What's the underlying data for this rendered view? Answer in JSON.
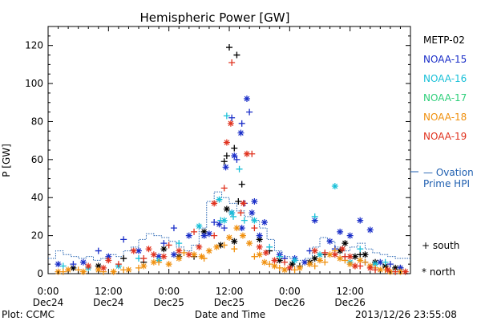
{
  "chart_data": {
    "type": "scatter",
    "title": "Hemispheric Power [GW]",
    "xlabel": "Date and Time",
    "ylabel": "P [GW]",
    "x_unit": "hours from 2013-12-24 00:00",
    "xlim": [
      0,
      72
    ],
    "ylim": [
      0,
      130
    ],
    "yticks": [
      0,
      20,
      40,
      60,
      80,
      100,
      120
    ],
    "xticks": [
      {
        "x": 0,
        "line1": "0:00",
        "line2": "Dec24"
      },
      {
        "x": 12,
        "line1": "12:00",
        "line2": "Dec24"
      },
      {
        "x": 24,
        "line1": "0:00",
        "line2": "Dec25"
      },
      {
        "x": 36,
        "line1": "12:00",
        "line2": "Dec25"
      },
      {
        "x": 48,
        "line1": "0:00",
        "line2": "Dec26"
      },
      {
        "x": 60,
        "line1": "12:00",
        "line2": "Dec26"
      }
    ],
    "legend": {
      "placement": "right",
      "satellites": [
        {
          "name": "METP-02",
          "color": "#000000"
        },
        {
          "name": "NOAA-15",
          "color": "#1a2ec8"
        },
        {
          "name": "NOAA-16",
          "color": "#19c0d8"
        },
        {
          "name": "NOAA-17",
          "color": "#2ecf7a"
        },
        {
          "name": "NOAA-18",
          "color": "#f0900e"
        },
        {
          "name": "NOAA-19",
          "color": "#e0321e"
        }
      ],
      "ovation_label_1": "— Ovation",
      "ovation_label_2": "Prime HPI",
      "ovation_color": "#1f5fb0",
      "south_label": "+ south",
      "north_label": "* north"
    },
    "footer_left": "Plot: CCMC",
    "footer_right": "2013/12/26 23:55:08",
    "ovation": {
      "x": [
        0,
        1.5,
        3,
        4.5,
        6,
        7.5,
        9,
        10.5,
        12,
        13.5,
        15,
        16.5,
        18,
        19.5,
        21,
        22.5,
        24,
        25.5,
        27,
        28.5,
        30,
        31.5,
        33,
        34.5,
        36,
        37.5,
        39,
        40.5,
        42,
        43.5,
        45,
        46.5,
        48,
        49.5,
        51,
        52.5,
        54,
        55.5,
        57,
        58.5,
        60,
        61.5,
        63,
        64.5,
        66,
        67.5,
        69,
        70.5,
        72
      ],
      "y": [
        8,
        12,
        10,
        9,
        8,
        9,
        7,
        8,
        10,
        9,
        12,
        14,
        18,
        21,
        20,
        19,
        17,
        14,
        12,
        15,
        24,
        38,
        43,
        40,
        37,
        33,
        30,
        28,
        24,
        18,
        12,
        9,
        8,
        7,
        8,
        14,
        19,
        17,
        14,
        12,
        14,
        16,
        13,
        11,
        10,
        9,
        8,
        8,
        8
      ]
    },
    "series": [
      {
        "name": "METP-02",
        "color": "#000000",
        "north": [
          [
            34.3,
            15
          ],
          [
            37,
            17
          ],
          [
            46,
            7
          ],
          [
            48.5,
            5
          ],
          [
            52,
            6
          ],
          [
            58,
            12
          ],
          [
            59,
            16
          ],
          [
            63,
            10
          ],
          [
            65,
            6
          ],
          [
            5,
            3
          ],
          [
            10,
            4
          ],
          [
            23,
            13
          ],
          [
            26,
            9
          ],
          [
            31,
            22
          ],
          [
            35.5,
            34
          ],
          [
            42,
            18
          ],
          [
            53,
            8
          ],
          [
            61,
            9
          ],
          [
            67,
            4
          ],
          [
            69,
            3
          ]
        ],
        "south": [
          [
            36,
            119
          ],
          [
            37.5,
            115
          ],
          [
            35.5,
            62
          ],
          [
            37,
            66
          ],
          [
            38.5,
            47
          ],
          [
            35,
            59
          ],
          [
            37.8,
            38
          ],
          [
            15,
            8
          ],
          [
            19,
            6
          ],
          [
            29,
            9
          ],
          [
            44,
            12
          ],
          [
            50,
            4
          ],
          [
            55,
            10
          ],
          [
            62,
            10
          ],
          [
            70,
            3
          ]
        ]
      },
      {
        "name": "NOAA-15",
        "color": "#1a2ec8",
        "north": [
          [
            39.5,
            92
          ],
          [
            38.3,
            74
          ],
          [
            37,
            62
          ],
          [
            35.3,
            56
          ],
          [
            34,
            26
          ],
          [
            36.5,
            32
          ],
          [
            38.5,
            24
          ],
          [
            41,
            38
          ],
          [
            40.5,
            32
          ],
          [
            42,
            20
          ],
          [
            43,
            27
          ],
          [
            53,
            28
          ],
          [
            60,
            20
          ],
          [
            62,
            28
          ],
          [
            64,
            23
          ],
          [
            32,
            21
          ],
          [
            31,
            20
          ],
          [
            25,
            10
          ],
          [
            18,
            12
          ],
          [
            12,
            9
          ],
          [
            7,
            6
          ],
          [
            2,
            5
          ],
          [
            46,
            10
          ],
          [
            49,
            8
          ],
          [
            51,
            6
          ],
          [
            56,
            17
          ],
          [
            58,
            22
          ],
          [
            66,
            6
          ],
          [
            70,
            3
          ],
          [
            28,
            20
          ],
          [
            22,
            9
          ]
        ],
        "south": [
          [
            40,
            85
          ],
          [
            38.5,
            79
          ],
          [
            36.5,
            82
          ],
          [
            37.5,
            60
          ],
          [
            39,
            37
          ],
          [
            33,
            27
          ],
          [
            35,
            24
          ],
          [
            25,
            24
          ],
          [
            23,
            16
          ],
          [
            15,
            18
          ],
          [
            10,
            12
          ],
          [
            5,
            5
          ],
          [
            47,
            8
          ],
          [
            52,
            12
          ],
          [
            57,
            13
          ],
          [
            59,
            9
          ],
          [
            63,
            6
          ],
          [
            68,
            5
          ]
        ]
      },
      {
        "name": "NOAA-16",
        "color": "#19c0d8",
        "north": [
          [
            57,
            46
          ],
          [
            36.5,
            32
          ],
          [
            34,
            39
          ],
          [
            30,
            25
          ],
          [
            41,
            28
          ],
          [
            35,
            28
          ],
          [
            49,
            7
          ],
          [
            54,
            10
          ],
          [
            60,
            6
          ],
          [
            65,
            5
          ],
          [
            22,
            7
          ],
          [
            14,
            4
          ],
          [
            8,
            3
          ]
        ],
        "south": [
          [
            35.5,
            83
          ],
          [
            38,
            55
          ],
          [
            34.3,
            28
          ],
          [
            36.8,
            30
          ],
          [
            39,
            28
          ],
          [
            53,
            30
          ],
          [
            44,
            14
          ],
          [
            62,
            13
          ],
          [
            26,
            16
          ],
          [
            18,
            8
          ],
          [
            3,
            4
          ],
          [
            46,
            9
          ],
          [
            67,
            6
          ]
        ]
      },
      {
        "name": "NOAA-17",
        "color": "#2ecf7a",
        "north": [],
        "south": []
      },
      {
        "name": "NOAA-18",
        "color": "#f0900e",
        "north": [
          [
            36,
            19
          ],
          [
            38.7,
            20
          ],
          [
            40,
            16
          ],
          [
            32,
            12
          ],
          [
            29,
            10
          ],
          [
            26,
            8
          ],
          [
            24,
            5
          ],
          [
            21,
            6
          ],
          [
            19,
            4
          ],
          [
            16,
            2
          ],
          [
            13,
            1
          ],
          [
            10,
            2
          ],
          [
            7,
            1
          ],
          [
            4,
            2
          ],
          [
            2,
            1
          ],
          [
            42,
            10
          ],
          [
            43,
            6
          ],
          [
            45,
            4
          ],
          [
            47,
            2
          ],
          [
            50,
            3
          ],
          [
            52,
            5
          ],
          [
            54,
            7
          ],
          [
            56,
            10
          ],
          [
            58,
            8
          ],
          [
            60,
            5
          ],
          [
            62,
            7
          ],
          [
            64,
            4
          ],
          [
            66,
            2
          ],
          [
            68,
            1
          ],
          [
            70,
            1
          ],
          [
            33.5,
            14
          ],
          [
            37.5,
            24
          ],
          [
            30.5,
            9
          ]
        ],
        "south": [
          [
            35,
            15
          ],
          [
            37,
            13
          ],
          [
            41,
            9
          ],
          [
            31,
            8
          ],
          [
            27,
            11
          ],
          [
            22,
            6
          ],
          [
            18,
            3
          ],
          [
            15,
            2
          ],
          [
            11,
            1
          ],
          [
            6,
            2
          ],
          [
            3,
            1
          ],
          [
            44,
            5
          ],
          [
            46,
            3
          ],
          [
            49,
            2
          ],
          [
            53,
            4
          ],
          [
            55,
            6
          ],
          [
            57,
            12
          ],
          [
            59,
            7
          ],
          [
            61,
            4
          ],
          [
            63,
            6
          ],
          [
            65,
            3
          ],
          [
            67,
            2
          ],
          [
            69,
            1
          ]
        ]
      },
      {
        "name": "NOAA-19",
        "color": "#e0321e",
        "north": [
          [
            36.3,
            79
          ],
          [
            35.5,
            69
          ],
          [
            39.5,
            63
          ],
          [
            38.8,
            37
          ],
          [
            33,
            37
          ],
          [
            42,
            14
          ],
          [
            43.3,
            11
          ],
          [
            53,
            12
          ],
          [
            57,
            10
          ],
          [
            58.5,
            13
          ],
          [
            60,
            9
          ],
          [
            61,
            4
          ],
          [
            64,
            3
          ],
          [
            67.5,
            2
          ],
          [
            71,
            1
          ],
          [
            45,
            7
          ],
          [
            48,
            3
          ],
          [
            23,
            9
          ],
          [
            21,
            10
          ],
          [
            17,
            12
          ],
          [
            12,
            7
          ],
          [
            8,
            4
          ],
          [
            20,
            13
          ],
          [
            26,
            12
          ],
          [
            28,
            10
          ],
          [
            30,
            14
          ],
          [
            11,
            3
          ]
        ],
        "south": [
          [
            36.5,
            111
          ],
          [
            40.5,
            63
          ],
          [
            35,
            45
          ],
          [
            38.3,
            32
          ],
          [
            41,
            24
          ],
          [
            55,
            11
          ],
          [
            59,
            9
          ],
          [
            62,
            4
          ],
          [
            65,
            2
          ],
          [
            69,
            1
          ],
          [
            47,
            6
          ],
          [
            24,
            15
          ],
          [
            29,
            22
          ],
          [
            33,
            20
          ],
          [
            19,
            8
          ],
          [
            14,
            5
          ]
        ]
      }
    ]
  }
}
